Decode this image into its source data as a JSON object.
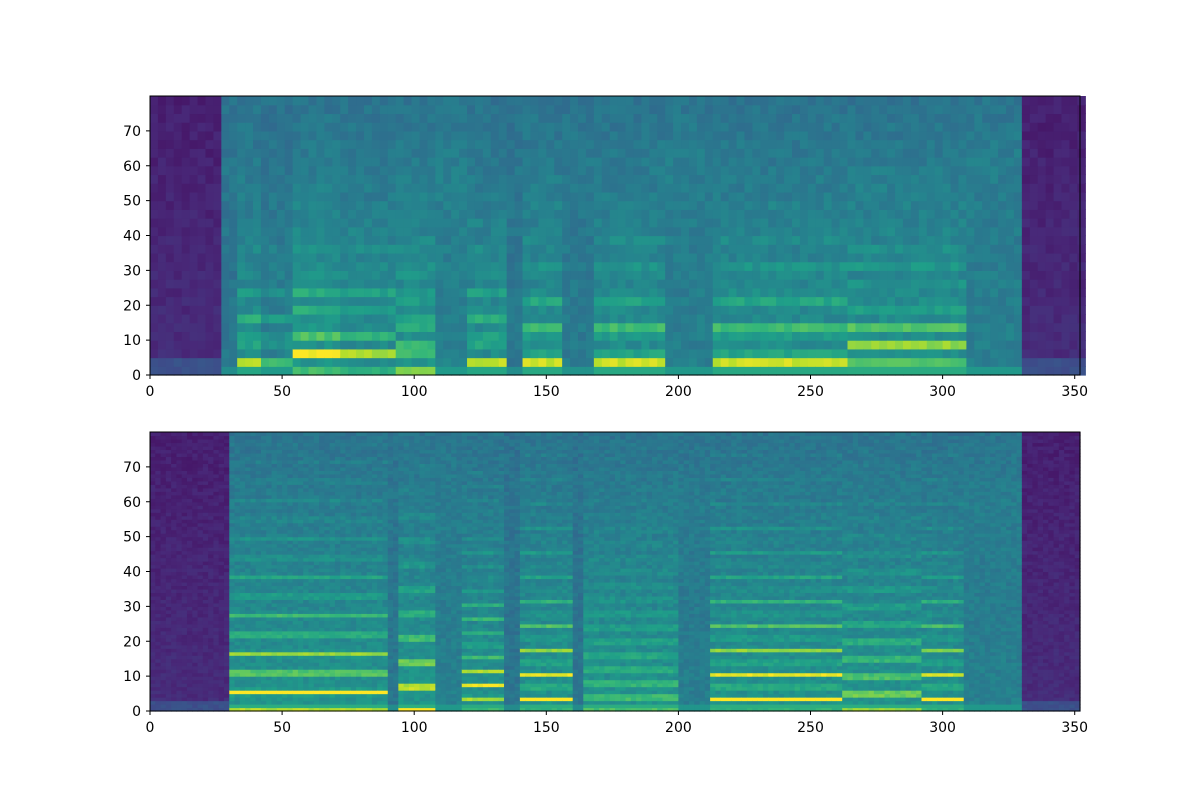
{
  "figure": {
    "background": "#ffffff"
  },
  "chart_data": [
    {
      "type": "heatmap",
      "panel": "top",
      "title": "",
      "xlabel": "",
      "ylabel": "",
      "xlim": [
        0,
        352
      ],
      "ylim": [
        0,
        80
      ],
      "xticks": [
        0,
        50,
        100,
        150,
        200,
        250,
        300,
        350
      ],
      "yticks": [
        0,
        10,
        20,
        30,
        40,
        50,
        60,
        70
      ],
      "colormap": "viridis",
      "color_range": {
        "low": "#440154",
        "mid": "#21908d",
        "high": "#fde725"
      },
      "style": "blocky",
      "regions": [
        {
          "x": [
            0,
            28
          ],
          "level": "low"
        },
        {
          "x": [
            28,
            330
          ],
          "level": "mid-high"
        },
        {
          "x": [
            330,
            352
          ],
          "level": "low"
        }
      ],
      "segments": [
        {
          "x": [
            28,
            33
          ],
          "f0": 0,
          "energy": 0.2
        },
        {
          "x": [
            33,
            42
          ],
          "f0": 4,
          "energy": 0.7
        },
        {
          "x": [
            42,
            54
          ],
          "f0": 4,
          "energy": 0.45
        },
        {
          "x": [
            54,
            72
          ],
          "f0": 6,
          "energy": 0.9
        },
        {
          "x": [
            72,
            93
          ],
          "f0": 6,
          "energy": 0.72
        },
        {
          "x": [
            93,
            107
          ],
          "f0": 7.5,
          "energy": 0.85
        },
        {
          "x": [
            107,
            119
          ],
          "f0": 0,
          "energy": 0.45
        },
        {
          "x": [
            119,
            134
          ],
          "f0": 4,
          "energy": 0.7
        },
        {
          "x": [
            134,
            141
          ],
          "f0": 0,
          "energy": 0.2
        },
        {
          "x": [
            141,
            157
          ],
          "f0": 3.5,
          "energy": 0.75
        },
        {
          "x": [
            157,
            168
          ],
          "f0": 0,
          "energy": 0.3
        },
        {
          "x": [
            168,
            196
          ],
          "f0": 3.5,
          "energy": 0.75
        },
        {
          "x": [
            196,
            214
          ],
          "f0": 0,
          "energy": 0.4
        },
        {
          "x": [
            214,
            263
          ],
          "f0": 3.5,
          "energy": 0.75
        },
        {
          "x": [
            263,
            308
          ],
          "f0": 4.5,
          "energy": 0.8
        },
        {
          "x": [
            308,
            330
          ],
          "f0": 0,
          "energy": 0.4
        }
      ]
    },
    {
      "type": "heatmap",
      "panel": "bottom",
      "title": "",
      "xlabel": "",
      "ylabel": "",
      "xlim": [
        0,
        352
      ],
      "ylim": [
        0,
        80
      ],
      "xticks": [
        0,
        50,
        100,
        150,
        200,
        250,
        300,
        350
      ],
      "yticks": [
        0,
        10,
        20,
        30,
        40,
        50,
        60,
        70
      ],
      "colormap": "viridis",
      "color_range": {
        "low": "#440154",
        "mid": "#21908d",
        "high": "#fde725"
      },
      "style": "smooth",
      "regions": [
        {
          "x": [
            0,
            30
          ],
          "level": "low"
        },
        {
          "x": [
            30,
            330
          ],
          "level": "mid-high"
        },
        {
          "x": [
            330,
            352
          ],
          "level": "low"
        }
      ],
      "segments": [
        {
          "x": [
            30,
            90
          ],
          "f0": 5.5,
          "energy": 0.85
        },
        {
          "x": [
            90,
            94
          ],
          "f0": 0,
          "energy": 0.2
        },
        {
          "x": [
            94,
            109
          ],
          "f0": 7,
          "energy": 0.9
        },
        {
          "x": [
            109,
            118
          ],
          "f0": 0,
          "energy": 0.4
        },
        {
          "x": [
            118,
            135
          ],
          "f0": 3.8,
          "energy": 0.8
        },
        {
          "x": [
            135,
            140
          ],
          "f0": 0,
          "energy": 0.15
        },
        {
          "x": [
            140,
            160
          ],
          "f0": 3.5,
          "energy": 0.85
        },
        {
          "x": [
            160,
            164
          ],
          "f0": 0,
          "energy": 0.15
        },
        {
          "x": [
            164,
            200
          ],
          "f0": 4,
          "energy": 0.85
        },
        {
          "x": [
            200,
            212
          ],
          "f0": 0,
          "energy": 0.35
        },
        {
          "x": [
            212,
            262
          ],
          "f0": 3.5,
          "energy": 0.85
        },
        {
          "x": [
            262,
            292
          ],
          "f0": 5,
          "energy": 0.85
        },
        {
          "x": [
            292,
            308
          ],
          "f0": 3.5,
          "energy": 0.8
        },
        {
          "x": [
            308,
            330
          ],
          "f0": 0,
          "energy": 0.4
        }
      ]
    }
  ]
}
